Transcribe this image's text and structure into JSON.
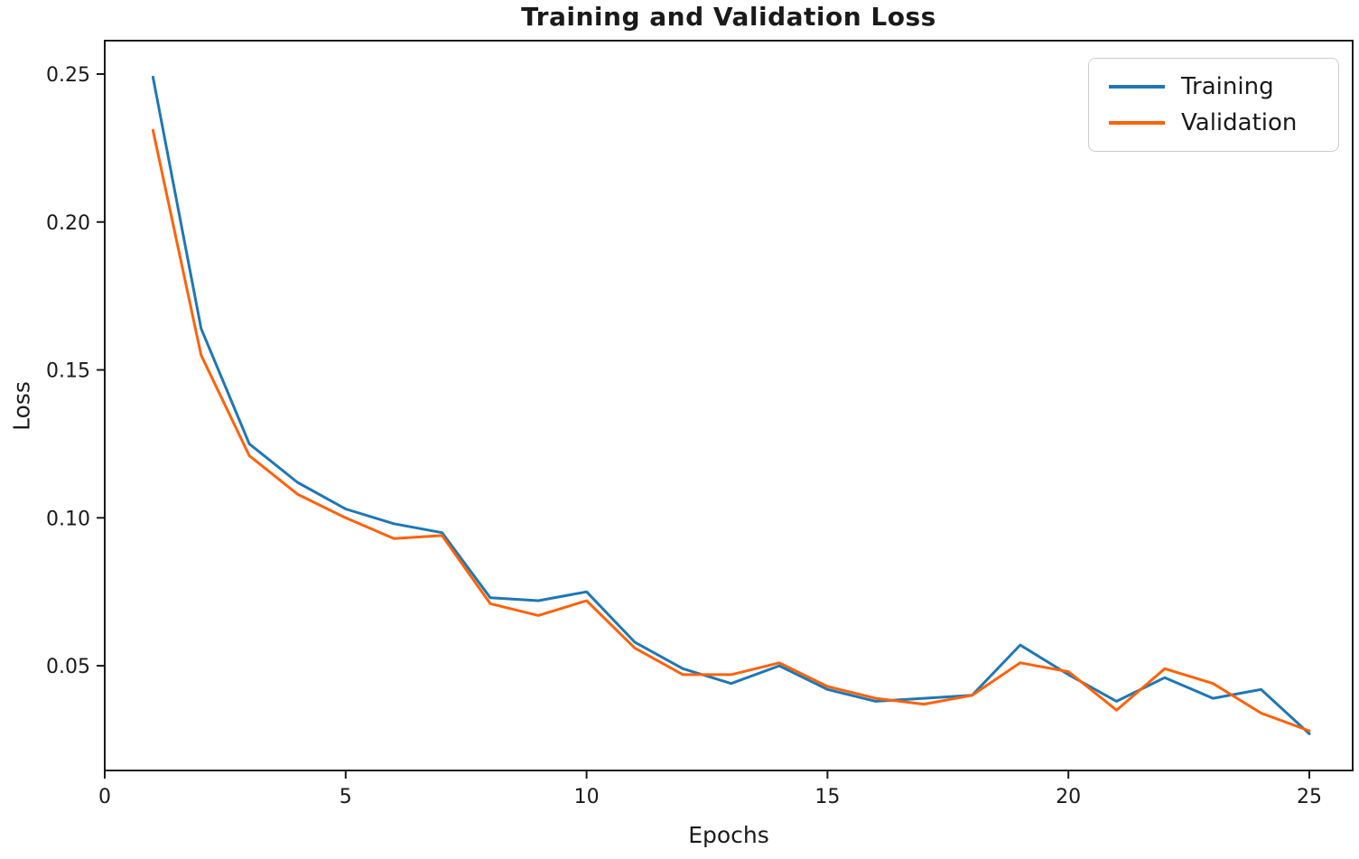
{
  "colors": {
    "training": "#1f77b4",
    "validation": "#ff620a",
    "axis": "#1a1a1a",
    "text": "#1a1a1a",
    "legend_border": "#cccccc",
    "background": "#ffffff"
  },
  "chart_data": {
    "type": "line",
    "title": "Training and Validation Loss",
    "xlabel": "Epochs",
    "ylabel": "Loss",
    "x": [
      1,
      2,
      3,
      4,
      5,
      6,
      7,
      8,
      9,
      10,
      11,
      12,
      13,
      14,
      15,
      16,
      17,
      18,
      19,
      20,
      21,
      22,
      23,
      24,
      25
    ],
    "series": [
      {
        "name": "Training",
        "color": "#1f77b4",
        "values": [
          0.249,
          0.164,
          0.125,
          0.112,
          0.103,
          0.098,
          0.095,
          0.073,
          0.072,
          0.075,
          0.058,
          0.049,
          0.044,
          0.05,
          0.042,
          0.038,
          0.039,
          0.04,
          0.057,
          0.047,
          0.038,
          0.046,
          0.039,
          0.042,
          0.027
        ]
      },
      {
        "name": "Validation",
        "color": "#ff620a",
        "values": [
          0.231,
          0.155,
          0.121,
          0.108,
          0.1,
          0.093,
          0.094,
          0.071,
          0.067,
          0.072,
          0.056,
          0.047,
          0.047,
          0.051,
          0.043,
          0.039,
          0.037,
          0.04,
          0.051,
          0.048,
          0.035,
          0.049,
          0.044,
          0.034,
          0.028
        ]
      }
    ],
    "xlim": [
      0,
      25.9
    ],
    "ylim": [
      0.0146,
      0.2613
    ],
    "xticks": [
      0,
      5,
      10,
      15,
      20,
      25
    ],
    "xtick_labels": [
      "0",
      "5",
      "10",
      "15",
      "20",
      "25"
    ],
    "yticks": [
      0.05,
      0.1,
      0.15,
      0.2,
      0.25
    ],
    "ytick_labels": [
      "0.05",
      "0.10",
      "0.15",
      "0.20",
      "0.25"
    ],
    "grid": false,
    "legend_position": "upper right",
    "legend_entries": [
      "Training",
      "Validation"
    ]
  }
}
